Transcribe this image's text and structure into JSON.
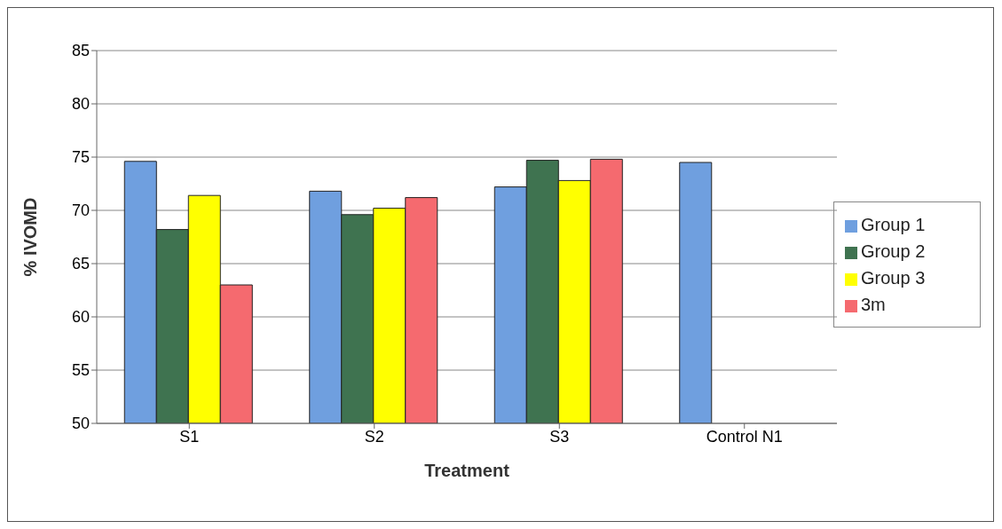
{
  "chart_data": {
    "type": "bar",
    "xlabel": "Treatment",
    "ylabel": "% IVOMD",
    "categories": [
      "S1",
      "S2",
      "S3",
      "Control N1"
    ],
    "series": [
      {
        "name": "Group 1",
        "color": "#6f9fdf",
        "values": [
          74.6,
          71.8,
          72.2,
          74.5
        ]
      },
      {
        "name": "Group 2",
        "color": "#3f7350",
        "values": [
          68.2,
          69.6,
          74.7,
          null
        ]
      },
      {
        "name": "Group 3",
        "color": "#ffff00",
        "values": [
          71.4,
          70.2,
          72.8,
          null
        ]
      },
      {
        "name": "3m",
        "color": "#f56a6f",
        "values": [
          63.0,
          71.2,
          74.8,
          null
        ]
      }
    ],
    "ylim": [
      50,
      85
    ],
    "yticks": [
      50,
      55,
      60,
      65,
      70,
      75,
      80,
      85
    ],
    "grid": "y",
    "legend": "right"
  }
}
